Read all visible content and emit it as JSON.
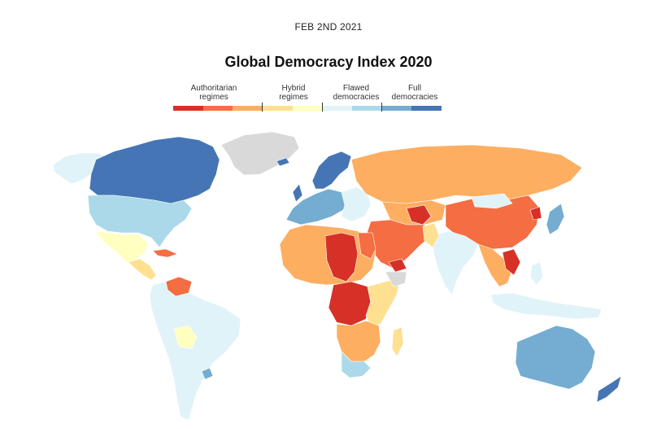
{
  "header": {
    "date": "FEB 2ND 2021",
    "title": "Global Democracy Index 2020"
  },
  "legend": {
    "categories": [
      {
        "label_line1": "Authoritarian",
        "label_line2": "regimes"
      },
      {
        "label_line1": "Hybrid",
        "label_line2": "regimes"
      },
      {
        "label_line1": "Flawed",
        "label_line2": "democracies"
      },
      {
        "label_line1": "Full",
        "label_line2": "democracies"
      }
    ],
    "colors": [
      "#d73027",
      "#f46d43",
      "#fdae61",
      "#fee090",
      "#ffffbf",
      "#e0f3f8",
      "#abd9e9",
      "#74add1",
      "#4575b4"
    ]
  },
  "map": {
    "no_data_color": "#d9d9d9"
  }
}
